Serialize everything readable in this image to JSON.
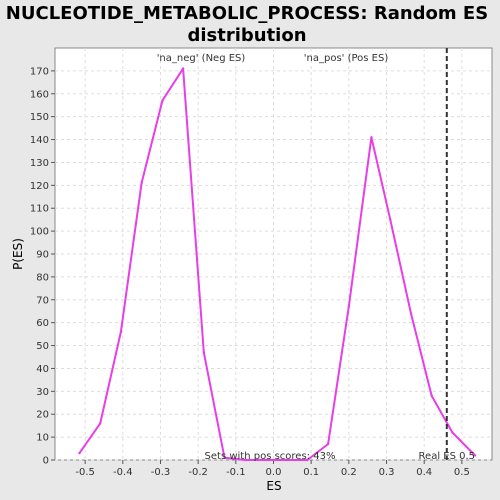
{
  "chart_data": {
    "type": "line",
    "title_lines": [
      "NUCLEOTIDE_METABOLIC_PROCESS: Random ES",
      "distribution"
    ],
    "xlabel": "ES",
    "ylabel": "P(ES)",
    "xlim": [
      -0.58,
      0.58
    ],
    "ylim": [
      0,
      180
    ],
    "xticks": [
      -0.5,
      -0.4,
      -0.3,
      -0.2,
      -0.1,
      0.0,
      0.1,
      0.2,
      0.3,
      0.4,
      0.5
    ],
    "xtick_labels": [
      "-0.5",
      "-0.4",
      "-0.3",
      "-0.2",
      "-0.1",
      "0.0",
      "0.1",
      "0.2",
      "0.3",
      "0.4",
      "0.5"
    ],
    "yticks": [
      0,
      10,
      20,
      30,
      40,
      50,
      60,
      70,
      80,
      90,
      100,
      110,
      120,
      130,
      140,
      150,
      160,
      170
    ],
    "grid": true,
    "series": [
      {
        "color": "#e83ee8",
        "x": [
          -0.515,
          -0.46,
          -0.405,
          -0.35,
          -0.295,
          -0.24,
          -0.185,
          -0.13,
          -0.075,
          -0.02,
          0.035,
          0.09,
          0.145,
          0.2,
          0.26,
          0.31,
          0.365,
          0.42,
          0.475,
          0.535
        ],
        "y": [
          3,
          16,
          56,
          121,
          157,
          171,
          47,
          1,
          0,
          0,
          0,
          0,
          7,
          67,
          141,
          105,
          64,
          28,
          12,
          2
        ]
      }
    ],
    "vline": {
      "x": 0.46,
      "label": "Real ES 0.5",
      "color": "#333333"
    },
    "annotations": {
      "neg_label": "'na_neg' (Neg ES)",
      "neg_color": "#3333cc",
      "pos_label": "'na_pos' (Pos ES)",
      "pos_color": "#dd3333",
      "pos_scores": "Sets with pos scores: 43%"
    }
  }
}
